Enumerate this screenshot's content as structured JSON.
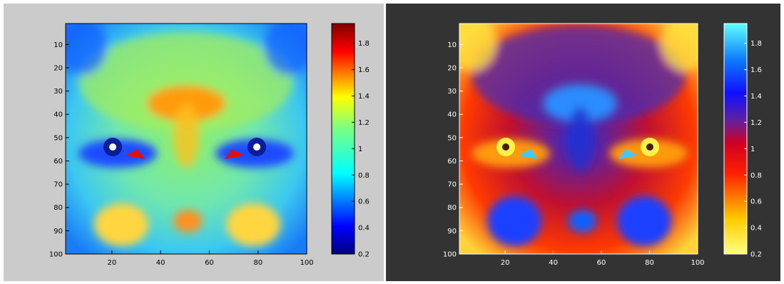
{
  "panels": [
    {
      "background": "#cbcbcb",
      "axis_color": "#000000",
      "colormap": "jet",
      "face_color_hint": "warm-center/cool-eyes"
    },
    {
      "background": "#333333",
      "axis_color": "#ffffff",
      "colormap": "inverted-hot-to-cyan",
      "face_color_hint": "inverse"
    }
  ],
  "chart_data": [
    {
      "type": "heatmap",
      "title": "",
      "xlabel": "",
      "ylabel": "",
      "xlim": [
        1,
        100
      ],
      "ylim": [
        1,
        100
      ],
      "x_ticks": [
        "20",
        "40",
        "60",
        "80",
        "100"
      ],
      "y_ticks": [
        "10",
        "20",
        "30",
        "40",
        "50",
        "60",
        "70",
        "80",
        "90",
        "100"
      ],
      "colorbar": {
        "range": [
          0.2,
          1.95
        ],
        "ticks": [
          "0.2",
          "0.4",
          "0.6",
          "0.8",
          "1",
          "1.2",
          "1.4",
          "1.6",
          "1.8"
        ],
        "colormap": "jet"
      },
      "grid": false,
      "legend": "none"
    },
    {
      "type": "heatmap",
      "title": "",
      "xlabel": "",
      "ylabel": "",
      "xlim": [
        1,
        100
      ],
      "ylim": [
        1,
        100
      ],
      "x_ticks": [
        "20",
        "40",
        "60",
        "80",
        "100"
      ],
      "y_ticks": [
        "10",
        "20",
        "30",
        "40",
        "50",
        "60",
        "70",
        "80",
        "90",
        "100"
      ],
      "colorbar": {
        "range": [
          0.2,
          1.95
        ],
        "ticks": [
          "0.2",
          "0.4",
          "0.6",
          "0.8",
          "1",
          "1.2",
          "1.4",
          "1.6",
          "1.8"
        ],
        "colormap": "yellow-red-blue-cyan"
      },
      "grid": false,
      "legend": "none"
    }
  ]
}
